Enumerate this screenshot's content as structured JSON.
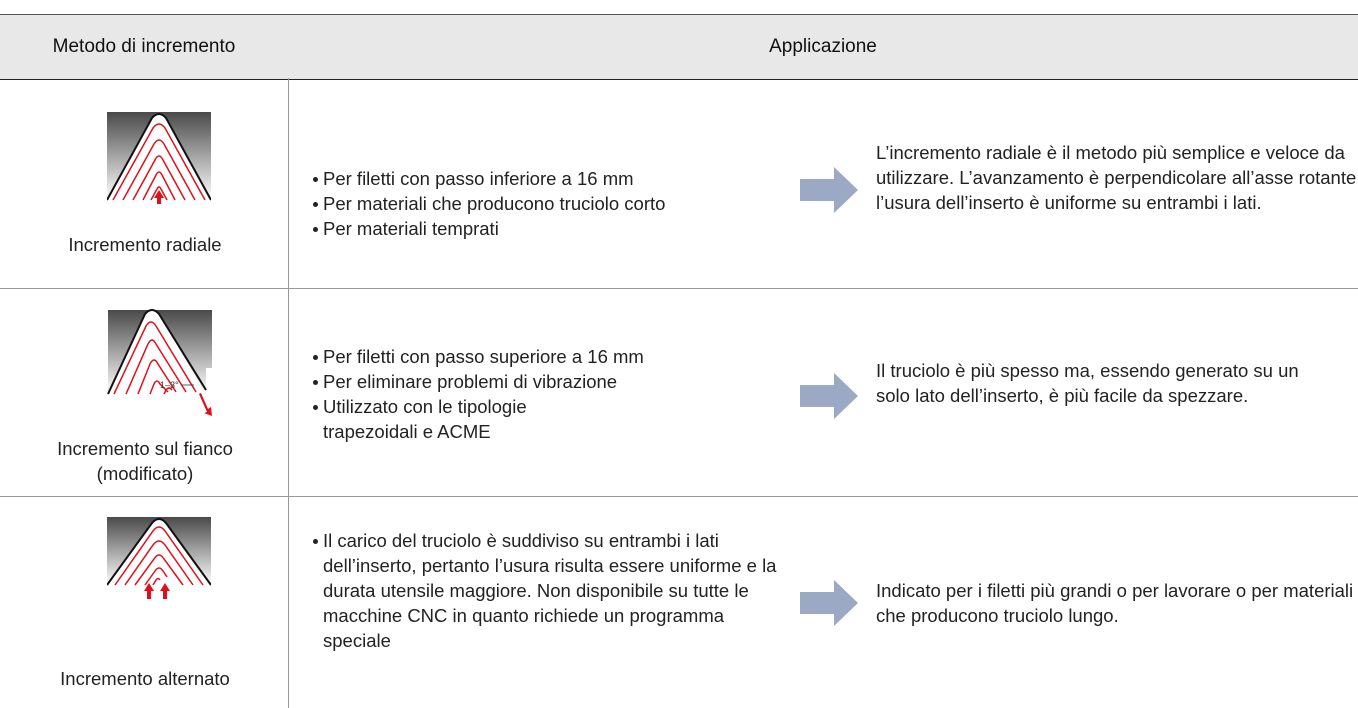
{
  "table": {
    "header": [
      "Metodo di incremento",
      "Applicazione"
    ],
    "rows": [
      {
        "method": "Incremento radiale",
        "bullets": [
          "Per filetti con passo inferiore a 16 mm",
          "Per materiali che producono truciolo corto",
          "Per materiali temprati"
        ],
        "description": "L’incremento radiale è il metodo più semplice e veloce da utilizzare. L’avanzamento è perpendicolare all’asse rotante; l’usura dell’inserto è uniforme su entrambi i lati."
      },
      {
        "method": "Incremento sul fianco (modificato)",
        "icon_label": "1–3°",
        "bullets": [
          "Per filetti con passo superiore a 16 mm",
          "Per eliminare problemi di vibrazione",
          "Utilizzato con le tipologie trapezoidali e ACME"
        ],
        "description": "Il truciolo è più spesso ma, essendo generato su un solo lato dell’inserto, è più facile da spezzare."
      },
      {
        "method": "Incremento alternato",
        "bullets": [
          "Il carico del truciolo è suddiviso su entrambi i lati dell’inserto, pertanto l’usura risulta essere uniforme e la durata utensile maggiore. Non disponibile su tutte le macchine CNC in quanto richiede un programma speciale"
        ],
        "description": "Indicato per i filetti più grandi o per lavorare o per materiali che producono truciolo lungo."
      }
    ]
  }
}
